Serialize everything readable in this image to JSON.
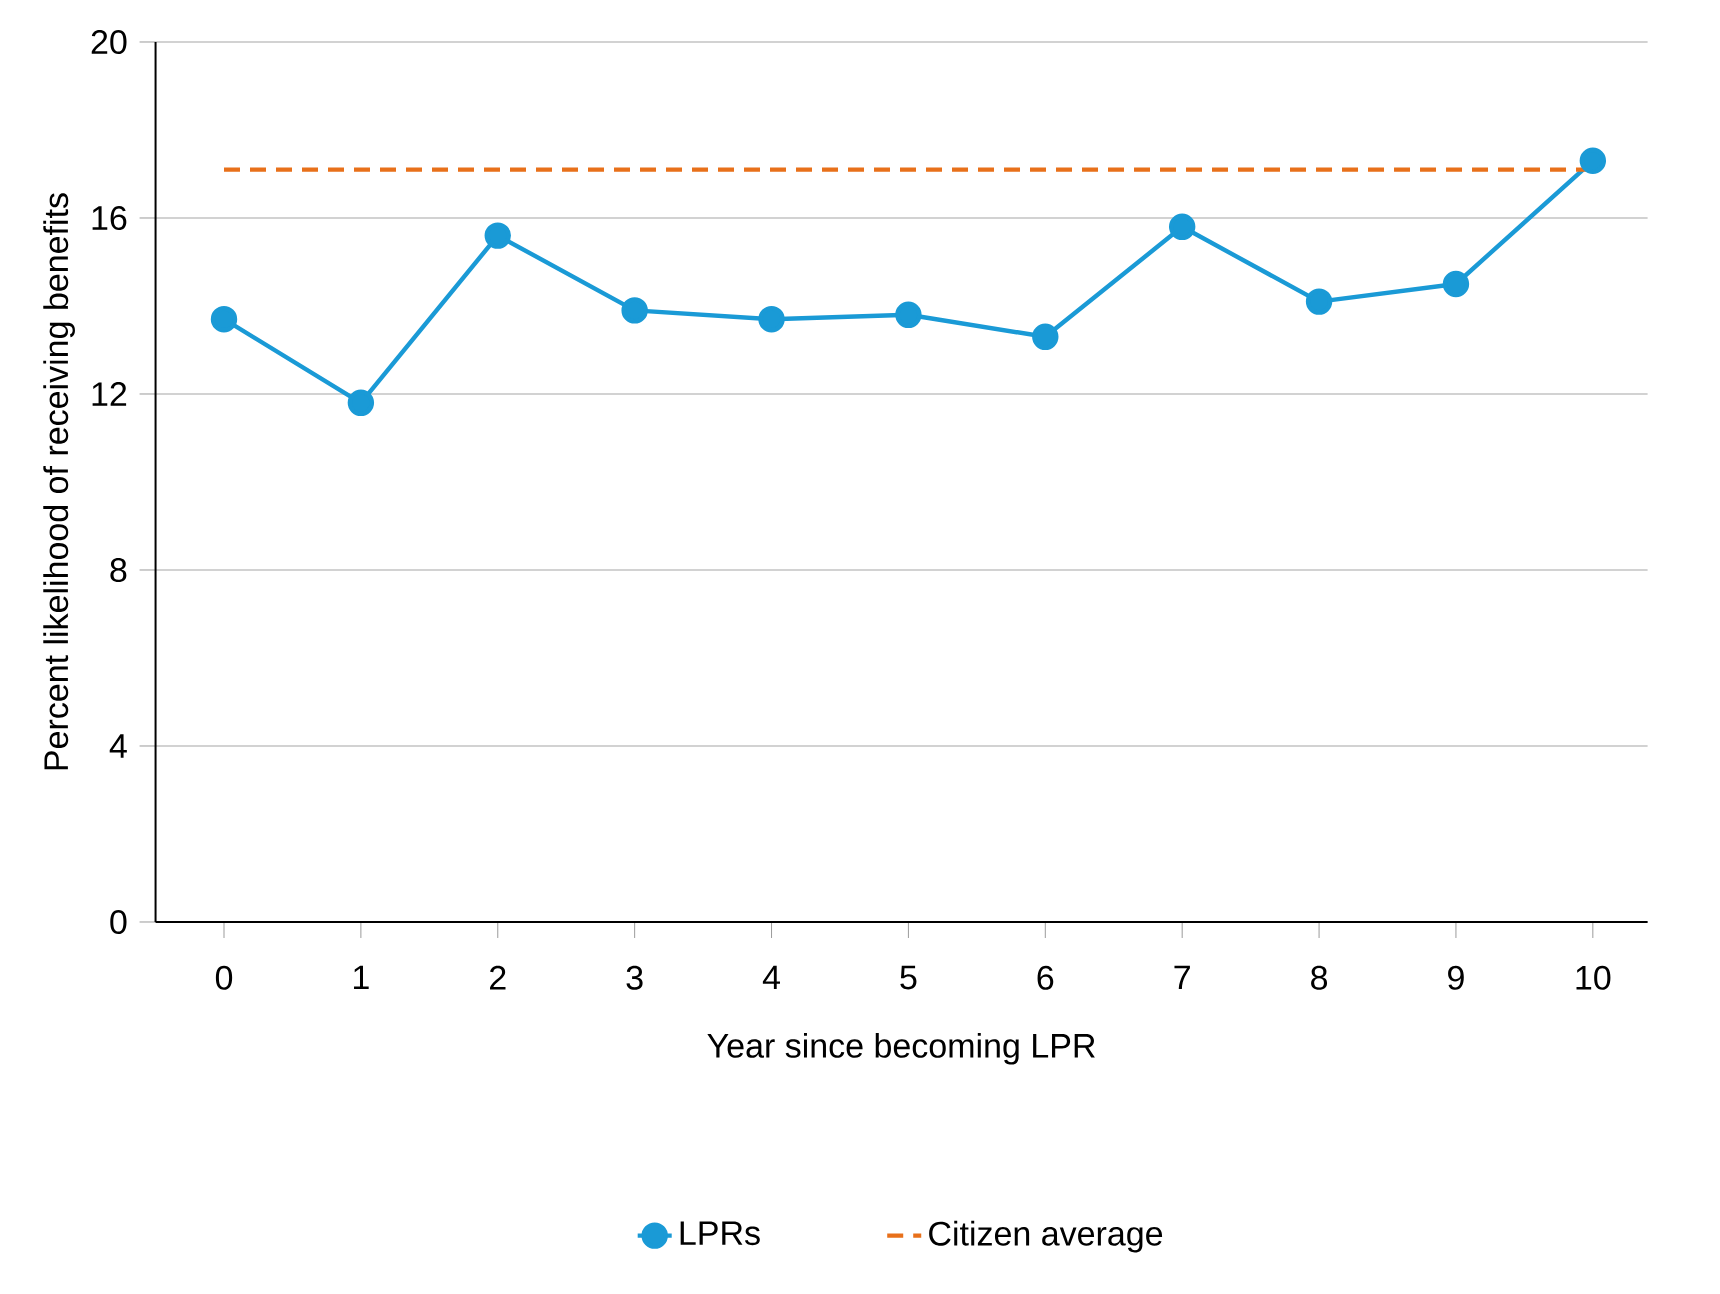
{
  "chart_data": {
    "type": "line",
    "xlabel": "Year since becoming LPR",
    "ylabel": "Percent likelihood of receiving benefits",
    "xlim": [
      -0.5,
      10.4
    ],
    "xticks": [
      0,
      1,
      2,
      3,
      4,
      5,
      6,
      7,
      8,
      9,
      10
    ],
    "ylim": [
      0,
      20
    ],
    "yticks": [
      0,
      4,
      8,
      12,
      16,
      20
    ],
    "grid": "y",
    "legend": "bottom",
    "series": [
      {
        "name": "LPRs",
        "color": "#1a9ad6",
        "marker": "circle",
        "line_style": "solid",
        "x": [
          0,
          1,
          2,
          3,
          4,
          5,
          6,
          7,
          8,
          9,
          10
        ],
        "values": [
          13.7,
          11.8,
          15.6,
          13.9,
          13.7,
          13.8,
          13.3,
          15.8,
          14.1,
          14.5,
          17.3
        ]
      },
      {
        "name": "Citizen average",
        "color": "#e8701a",
        "marker": "none",
        "line_style": "dashed",
        "x": [
          0,
          10
        ],
        "values": [
          17.1,
          17.1
        ]
      }
    ]
  }
}
